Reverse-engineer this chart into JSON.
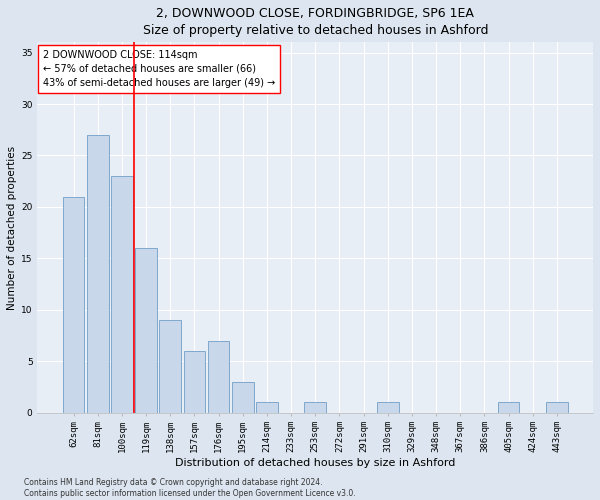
{
  "title1": "2, DOWNWOOD CLOSE, FORDINGBRIDGE, SP6 1EA",
  "title2": "Size of property relative to detached houses in Ashford",
  "xlabel": "Distribution of detached houses by size in Ashford",
  "ylabel": "Number of detached properties",
  "categories": [
    "62sqm",
    "81sqm",
    "100sqm",
    "119sqm",
    "138sqm",
    "157sqm",
    "176sqm",
    "195sqm",
    "214sqm",
    "233sqm",
    "253sqm",
    "272sqm",
    "291sqm",
    "310sqm",
    "329sqm",
    "348sqm",
    "367sqm",
    "386sqm",
    "405sqm",
    "424sqm",
    "443sqm"
  ],
  "values": [
    21,
    27,
    23,
    16,
    9,
    6,
    7,
    3,
    1,
    0,
    1,
    0,
    0,
    1,
    0,
    0,
    0,
    0,
    1,
    0,
    1
  ],
  "bar_color": "#c8d8ea",
  "bar_edgecolor": "#7fa8cc",
  "vline_x": 2.5,
  "vline_color": "red",
  "annotation_title": "2 DOWNWOOD CLOSE: 114sqm",
  "annotation_line1": "← 57% of detached houses are smaller (66)",
  "annotation_line2": "43% of semi-detached houses are larger (49) →",
  "ylim": [
    0,
    36
  ],
  "yticks": [
    0,
    5,
    10,
    15,
    20,
    25,
    30,
    35
  ],
  "footer1": "Contains HM Land Registry data © Crown copyright and database right 2024.",
  "footer2": "Contains public sector information licensed under the Open Government Licence v3.0.",
  "bg_color": "#dde6f0",
  "plot_bg_color": "#e8eef6",
  "grid_color": "#ffffff",
  "title1_fontsize": 9,
  "title2_fontsize": 8.5,
  "xlabel_fontsize": 8,
  "ylabel_fontsize": 7.5,
  "tick_fontsize": 6.5,
  "annot_fontsize": 7,
  "footer_fontsize": 5.5
}
